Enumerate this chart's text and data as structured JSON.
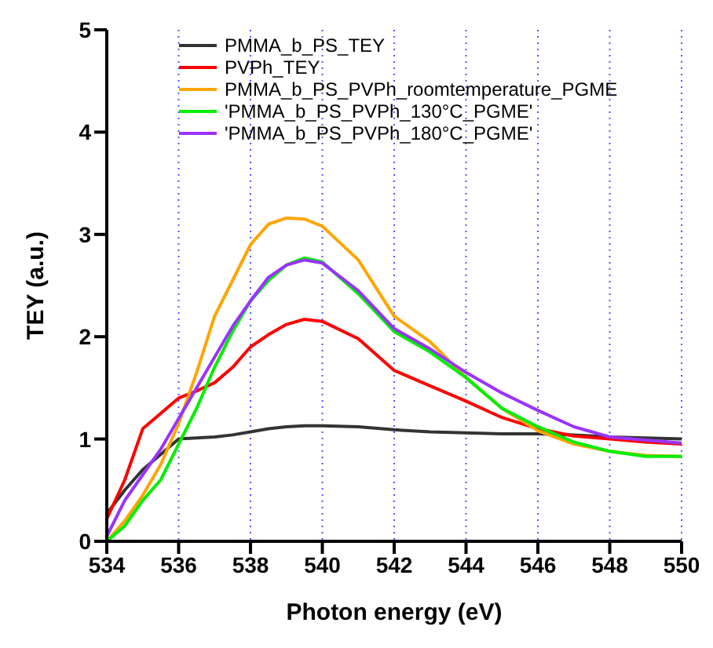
{
  "chart_data": {
    "type": "line",
    "xlabel": "Photon energy (eV)",
    "ylabel": "TEY (a.u.)",
    "x": [
      534,
      534.5,
      535,
      535.5,
      536,
      536.5,
      537,
      537.5,
      538,
      538.5,
      539,
      539.5,
      540,
      541,
      542,
      543,
      544,
      545,
      546,
      547,
      548,
      549,
      550
    ],
    "series": [
      {
        "name": "PMMA_b_PS_TEY",
        "color": "#333333",
        "values": [
          0.27,
          0.5,
          0.7,
          0.85,
          1.0,
          1.01,
          1.02,
          1.04,
          1.07,
          1.1,
          1.12,
          1.13,
          1.13,
          1.12,
          1.09,
          1.07,
          1.06,
          1.05,
          1.05,
          1.04,
          1.02,
          1.01,
          1.0
        ]
      },
      {
        "name": "PVPh_TEY",
        "color": "#ff0000",
        "values": [
          0.22,
          0.6,
          1.1,
          1.25,
          1.4,
          1.47,
          1.55,
          1.7,
          1.9,
          2.02,
          2.12,
          2.17,
          2.15,
          1.98,
          1.67,
          1.52,
          1.37,
          1.21,
          1.1,
          1.03,
          1.0,
          0.97,
          0.95
        ]
      },
      {
        "name": "PMMA_b_PS_PVPh_roomtemperature_PGME",
        "color": "#ffa500",
        "values": [
          0.0,
          0.2,
          0.45,
          0.75,
          1.15,
          1.65,
          2.2,
          2.55,
          2.9,
          3.1,
          3.16,
          3.15,
          3.08,
          2.75,
          2.2,
          1.95,
          1.6,
          1.3,
          1.08,
          0.95,
          0.88,
          0.84,
          0.83
        ]
      },
      {
        "name": "'PMMA_b_PS_PVPh_130°C_PGME'",
        "color": "#00ee00",
        "values": [
          0.0,
          0.15,
          0.4,
          0.6,
          0.95,
          1.3,
          1.7,
          2.05,
          2.35,
          2.55,
          2.7,
          2.77,
          2.73,
          2.42,
          2.05,
          1.85,
          1.6,
          1.3,
          1.12,
          0.97,
          0.88,
          0.83,
          0.83
        ]
      },
      {
        "name": "'PMMA_b_PS_PVPh_180°C_PGME'",
        "color": "#9933ff",
        "values": [
          0.05,
          0.4,
          0.65,
          0.9,
          1.2,
          1.5,
          1.8,
          2.1,
          2.35,
          2.58,
          2.7,
          2.75,
          2.72,
          2.45,
          2.08,
          1.88,
          1.65,
          1.45,
          1.28,
          1.12,
          1.02,
          0.99,
          0.96
        ]
      }
    ],
    "xlim": [
      534,
      550
    ],
    "xticks": [
      534,
      536,
      538,
      540,
      542,
      544,
      546,
      548,
      550
    ],
    "ylim": [
      0,
      5
    ],
    "yticks": [
      0,
      1,
      2,
      3,
      4,
      5
    ],
    "grid": "x",
    "legend": "top left",
    "marker": "none",
    "line_style": "solid"
  }
}
